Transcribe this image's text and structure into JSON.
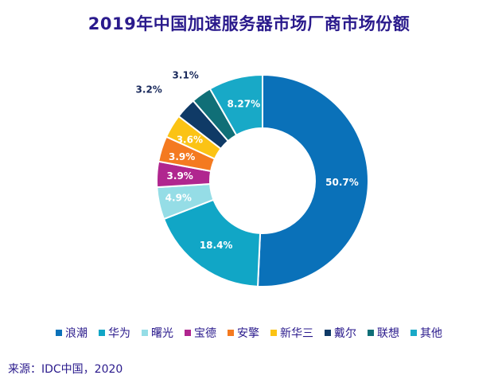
{
  "chart_data": {
    "type": "pie",
    "variant": "donut",
    "title": "2019年中国加速服务器市场厂商市场份额",
    "categories": [
      "浪潮",
      "华为",
      "曙光",
      "宝德",
      "安擎",
      "新华三",
      "戴尔",
      "联想",
      "其他"
    ],
    "values": [
      50.7,
      18.4,
      4.9,
      3.9,
      3.9,
      3.6,
      3.2,
      3.1,
      8.27
    ],
    "labels": [
      "50.7%",
      "18.4%",
      "4.9%",
      "3.9%",
      "3.9%",
      "3.6%",
      "3.2%",
      "3.1%",
      "8.27%"
    ],
    "colors": [
      "#0a71b9",
      "#11a6c6",
      "#95dde6",
      "#b0268f",
      "#f47a20",
      "#fbc314",
      "#0f3a66",
      "#106f77",
      "#18a9c7"
    ],
    "label_colors": [
      "#ffffff",
      "#ffffff",
      "#ffffff",
      "#ffffff",
      "#ffffff",
      "#ffffff",
      "#1a2a5c",
      "#1a2a5c",
      "#ffffff"
    ],
    "legend_position": "bottom"
  },
  "source": "来源：IDC中国，2020"
}
